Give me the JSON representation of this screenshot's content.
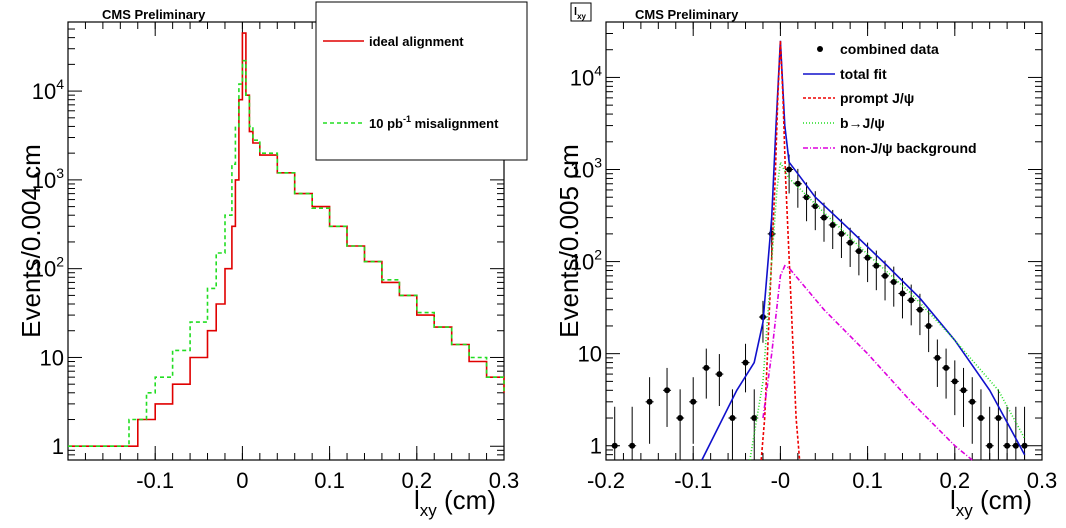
{
  "chart_data": [
    {
      "type": "line",
      "preliminary_label": "CMS Preliminary",
      "ylabel": "Events/0.004 cm",
      "xlabel": {
        "main": "l",
        "sub": "xy",
        "unit": " (cm)"
      },
      "x_tick_labels": [
        "-0.1",
        "0",
        "0.1",
        "0.2",
        "0.3"
      ],
      "x_ticks": [
        -0.1,
        0,
        0.1,
        0.2,
        0.3
      ],
      "xlim": [
        -0.2,
        0.3
      ],
      "y_scale": "log",
      "ylim": [
        0.7,
        60000
      ],
      "y_tick_labels": [
        {
          "value": 1,
          "base": "1",
          "exp": ""
        },
        {
          "value": 10,
          "base": "10",
          "exp": ""
        },
        {
          "value": 100,
          "base": "10",
          "exp": "2"
        },
        {
          "value": 1000,
          "base": "10",
          "exp": "3"
        },
        {
          "value": 10000,
          "base": "10",
          "exp": "4"
        }
      ],
      "legend_placement": "top-right",
      "legend": [
        {
          "pre": "ideal alignment",
          "sup": "",
          "post": "",
          "color": "#e00000",
          "dash": "none"
        },
        {
          "pre": "10 pb",
          "sup": "-1",
          "post": " misalignment",
          "color": "#22dd22",
          "dash": "4,3"
        }
      ],
      "series": [
        {
          "name": "ideal alignment",
          "color": "#e00000",
          "dash": "none",
          "x": [
            -0.2,
            -0.18,
            -0.15,
            -0.12,
            -0.1,
            -0.08,
            -0.06,
            -0.04,
            -0.03,
            -0.02,
            -0.012,
            -0.008,
            -0.004,
            0,
            0.004,
            0.008,
            0.012,
            0.02,
            0.04,
            0.06,
            0.08,
            0.1,
            0.12,
            0.14,
            0.16,
            0.18,
            0.2,
            0.22,
            0.24,
            0.26,
            0.28,
            0.3
          ],
          "values": [
            1,
            1,
            1,
            2,
            3,
            5,
            10,
            20,
            40,
            100,
            300,
            1000,
            8000,
            45000,
            9000,
            3500,
            2600,
            1900,
            1200,
            700,
            500,
            300,
            180,
            120,
            70,
            50,
            30,
            22,
            14,
            9,
            6,
            4
          ]
        },
        {
          "name": "10 pb-1 misalignment",
          "color": "#22dd22",
          "dash": "4,3",
          "x": [
            -0.2,
            -0.16,
            -0.13,
            -0.11,
            -0.1,
            -0.08,
            -0.06,
            -0.04,
            -0.03,
            -0.02,
            -0.012,
            -0.008,
            -0.004,
            0,
            0.004,
            0.008,
            0.012,
            0.02,
            0.04,
            0.06,
            0.08,
            0.1,
            0.12,
            0.14,
            0.16,
            0.18,
            0.2,
            0.22,
            0.24,
            0.26,
            0.28,
            0.3
          ],
          "values": [
            1,
            1,
            2,
            4,
            6,
            12,
            25,
            60,
            150,
            400,
            1500,
            4000,
            12000,
            22000,
            9000,
            4000,
            2800,
            2000,
            1200,
            700,
            480,
            300,
            180,
            120,
            75,
            50,
            32,
            22,
            14,
            10,
            6,
            4
          ]
        }
      ]
    },
    {
      "type": "line",
      "preliminary_label": "CMS Preliminary",
      "corner_label": {
        "main": "l",
        "sub": "xy"
      },
      "ylabel": "Events/0.005 cm",
      "xlabel": {
        "main": "l",
        "sub": "xy",
        "unit": " (cm)"
      },
      "x_tick_labels": [
        "-0.2",
        "-0.1",
        "-0",
        "0.1",
        "0.2",
        "0.3"
      ],
      "x_ticks": [
        -0.2,
        -0.1,
        0,
        0.1,
        0.2,
        0.3
      ],
      "xlim": [
        -0.2,
        0.3
      ],
      "y_scale": "log",
      "ylim": [
        0.7,
        40000
      ],
      "y_tick_labels": [
        {
          "value": 1,
          "base": "1",
          "exp": ""
        },
        {
          "value": 10,
          "base": "10",
          "exp": ""
        },
        {
          "value": 100,
          "base": "10",
          "exp": "2"
        },
        {
          "value": 1000,
          "base": "10",
          "exp": "3"
        },
        {
          "value": 10000,
          "base": "10",
          "exp": "4"
        }
      ],
      "legend_placement": "top-right",
      "legend": [
        {
          "label": "combined data",
          "kind": "marker",
          "color": "#000000",
          "dash": "none"
        },
        {
          "label": "total fit",
          "kind": "line",
          "color": "#1010cc",
          "dash": "none"
        },
        {
          "label": "prompt J/ψ",
          "kind": "line",
          "color": "#ee0000",
          "dash": "3,2"
        },
        {
          "label": "b→J/ψ",
          "kind": "line",
          "color": "#22dd22",
          "dash": "1,2"
        },
        {
          "label": "non-J/ψ background",
          "kind": "line",
          "color": "#dd00dd",
          "dash": "5,2,1,2"
        }
      ],
      "data_points": {
        "x": [
          -0.19,
          -0.17,
          -0.15,
          -0.13,
          -0.115,
          -0.1,
          -0.085,
          -0.07,
          -0.055,
          -0.04,
          -0.03,
          -0.02,
          -0.01,
          0.01,
          0.02,
          0.03,
          0.04,
          0.05,
          0.06,
          0.07,
          0.08,
          0.09,
          0.1,
          0.11,
          0.12,
          0.13,
          0.14,
          0.15,
          0.16,
          0.17,
          0.18,
          0.19,
          0.2,
          0.21,
          0.22,
          0.23,
          0.24,
          0.25,
          0.26,
          0.27,
          0.28
        ],
        "values": [
          1,
          1,
          3,
          4,
          2,
          3,
          7,
          6,
          2,
          8,
          2,
          25,
          200,
          1000,
          700,
          500,
          400,
          300,
          250,
          200,
          160,
          130,
          110,
          90,
          70,
          60,
          45,
          38,
          30,
          20,
          9,
          7,
          5,
          4,
          3,
          2,
          1,
          2,
          1,
          1,
          1
        ],
        "rel_err": 0.45
      },
      "curves": [
        {
          "name": "total fit",
          "color": "#1010cc",
          "dash": "none",
          "x": [
            -0.09,
            -0.05,
            -0.03,
            -0.02,
            -0.01,
            -0.005,
            0,
            0.005,
            0.01,
            0.02,
            0.04,
            0.08,
            0.12,
            0.16,
            0.2,
            0.24,
            0.28
          ],
          "values": [
            0.7,
            4,
            8,
            22,
            300,
            3000,
            25000,
            3000,
            1200,
            900,
            500,
            220,
            95,
            40,
            14,
            4,
            0.8
          ]
        },
        {
          "name": "prompt J/ψ",
          "color": "#ee0000",
          "dash": "3,2",
          "x": [
            -0.022,
            -0.018,
            -0.012,
            -0.006,
            -0.003,
            0,
            0.003,
            0.006,
            0.012,
            0.018,
            0.022
          ],
          "values": [
            0.7,
            2,
            40,
            800,
            6000,
            25000,
            6000,
            800,
            40,
            2,
            0.7
          ]
        },
        {
          "name": "b→J/ψ",
          "color": "#22dd22",
          "dash": "1,2",
          "x": [
            -0.035,
            -0.02,
            -0.01,
            -0.004,
            0,
            0.004,
            0.01,
            0.02,
            0.05,
            0.1,
            0.15,
            0.2,
            0.25,
            0.28
          ],
          "values": [
            0.7,
            5,
            100,
            600,
            1200,
            1000,
            800,
            650,
            340,
            120,
            45,
            14,
            4,
            1.2
          ]
        },
        {
          "name": "non-J/ψ background",
          "color": "#dd00dd",
          "dash": "5,2,1,2",
          "x": [
            -0.02,
            -0.01,
            0,
            0.005,
            0.01,
            0.05,
            0.1,
            0.15,
            0.2,
            0.22
          ],
          "values": [
            2,
            10,
            70,
            90,
            85,
            30,
            10,
            3,
            1,
            0.7
          ]
        }
      ]
    }
  ]
}
